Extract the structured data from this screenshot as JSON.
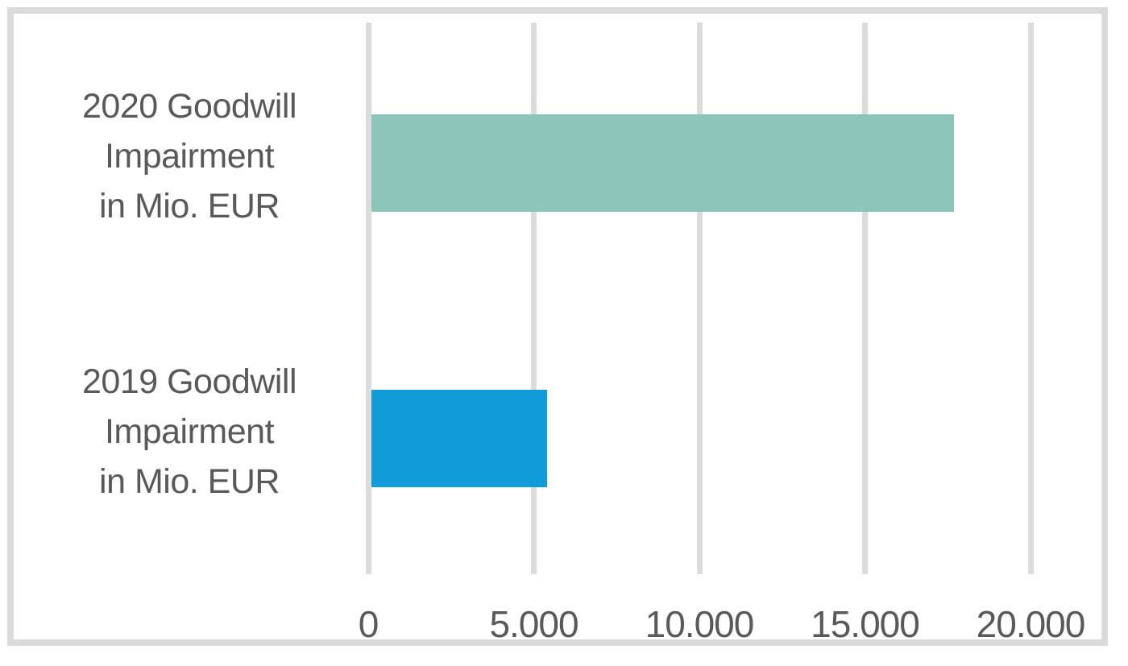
{
  "chart_data": {
    "type": "bar",
    "orientation": "horizontal",
    "title": "",
    "xlabel": "",
    "ylabel": "",
    "categories": [
      "2020 Goodwill Impairment in Mio. EUR",
      "2019 Goodwill Impairment in Mio. EUR"
    ],
    "category_lines": [
      [
        "2020 Goodwill",
        "Impairment",
        "in Mio. EUR"
      ],
      [
        "2019 Goodwill",
        "Impairment",
        "in Mio. EUR"
      ]
    ],
    "values": [
      17700,
      5400
    ],
    "bar_colors": [
      "#8cc6bb",
      "#119bd9"
    ],
    "xlim": [
      0,
      20000
    ],
    "x_ticks": {
      "values": [
        0,
        5000,
        10000,
        15000,
        20000
      ],
      "labels": [
        "0",
        "5.000",
        "10.000",
        "15.000",
        "20.000"
      ]
    },
    "grid": "vertical-only",
    "legend": "none",
    "colors": {
      "gridline": "#dcdcdc",
      "frame_border": "#dadada",
      "axis_text": "#595959",
      "background": "#ffffff"
    }
  }
}
